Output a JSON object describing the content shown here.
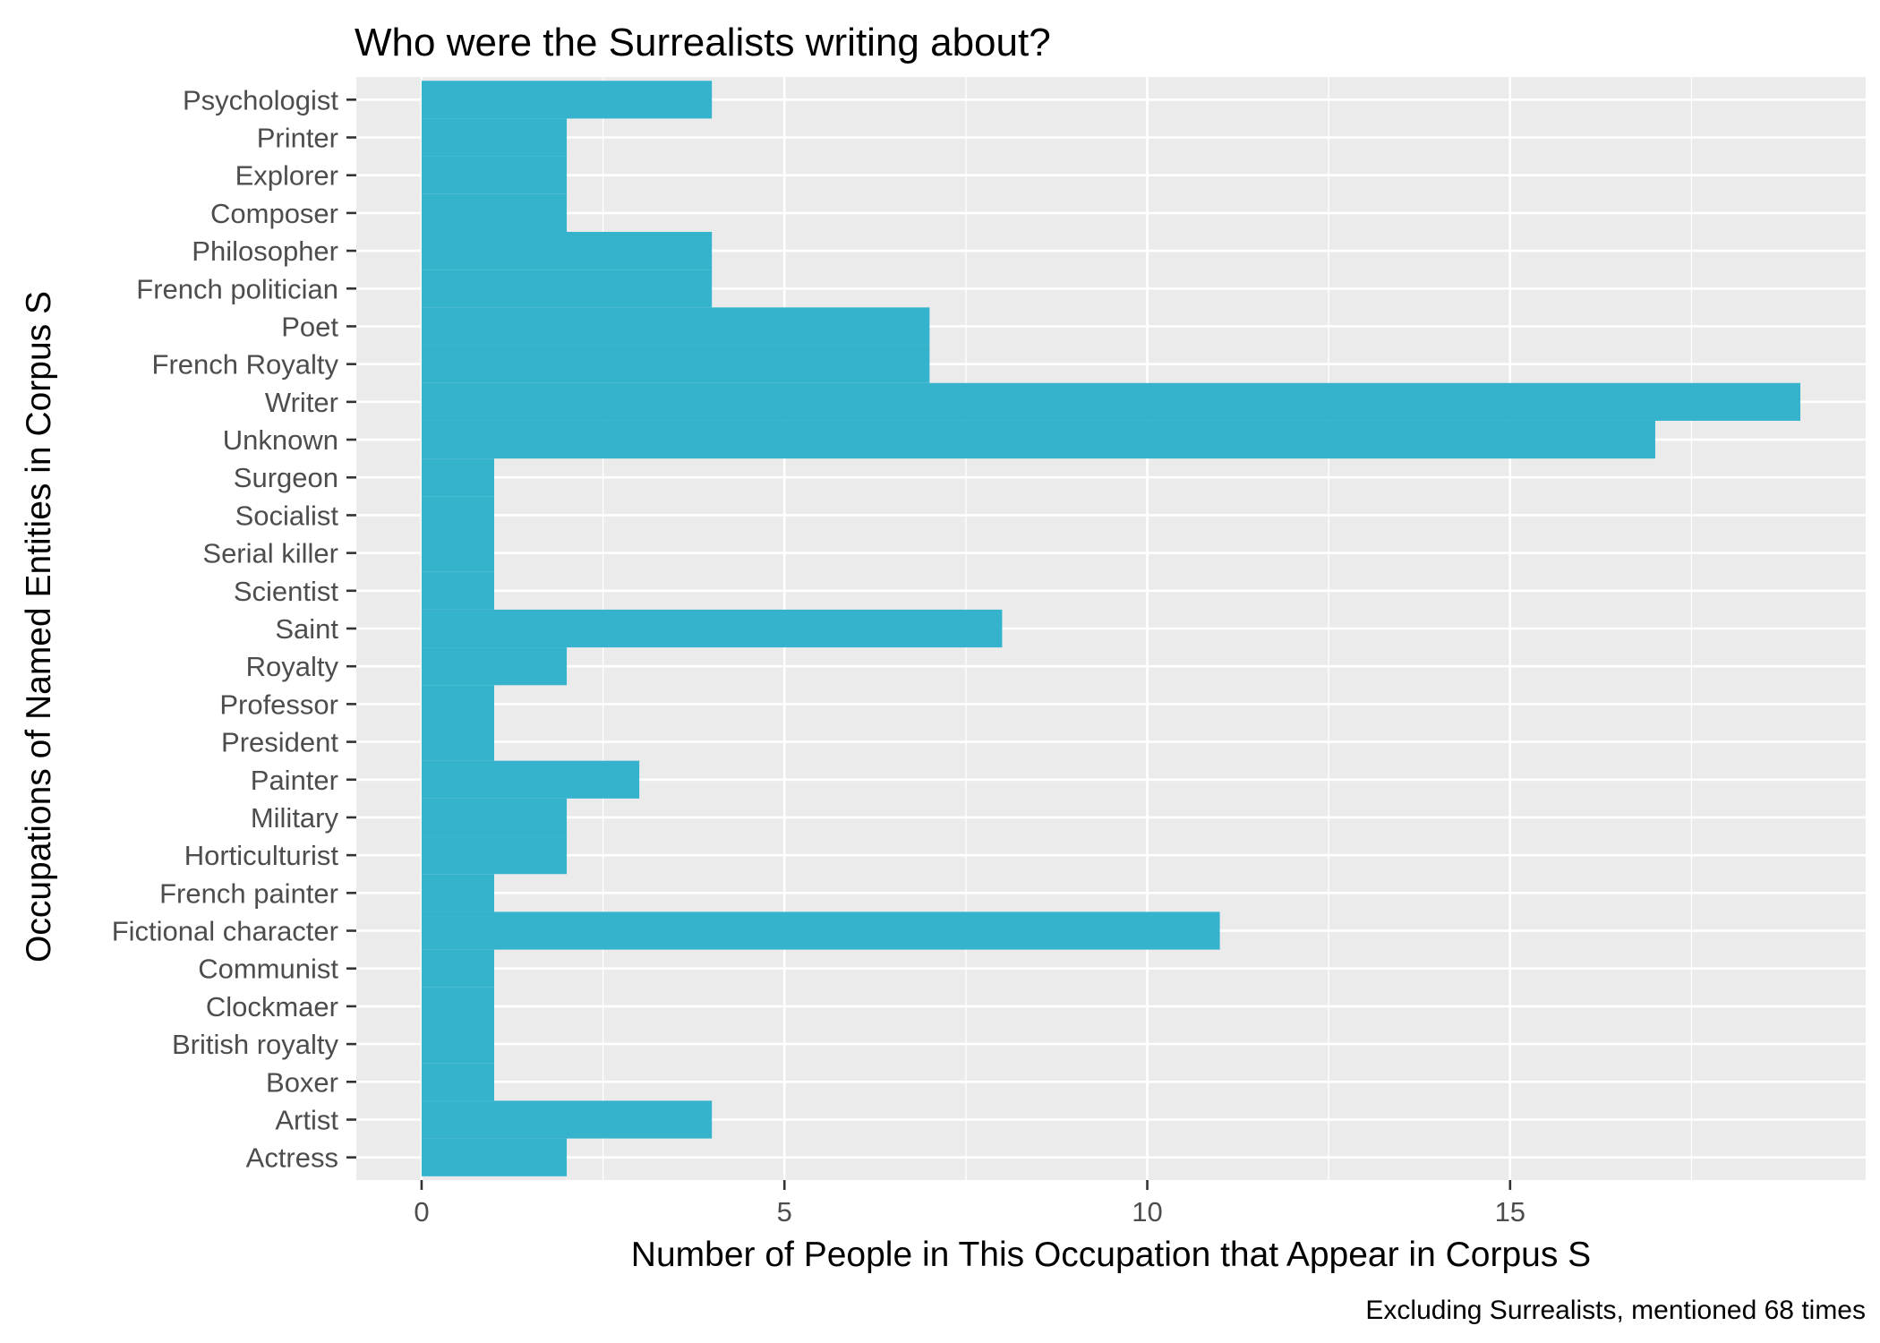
{
  "chart_data": {
    "type": "bar",
    "orientation": "horizontal",
    "title": "Who were the Surrealists writing about?",
    "xlabel": "Number of People in This Occupation that Appear in Corpus S",
    "ylabel": "Occupations of Named Entities in Corpus S",
    "caption": "Excluding Surrealists, mentioned 68 times",
    "categories": [
      "Actress",
      "Artist",
      "Boxer",
      "British royalty",
      "Clockmaer",
      "Communist",
      "Fictional character",
      "French painter",
      "Horticulturist",
      "Military",
      "Painter",
      "President",
      "Professor",
      "Royalty",
      "Saint",
      "Scientist",
      "Serial killer",
      "Socialist",
      "Surgeon",
      "Unknown",
      "Writer",
      "French Royalty",
      "Poet",
      "French politician",
      "Philosopher",
      "Composer",
      "Explorer",
      "Printer",
      "Psychologist"
    ],
    "values": [
      2,
      4,
      1,
      1,
      1,
      1,
      11,
      1,
      2,
      2,
      3,
      1,
      1,
      2,
      8,
      1,
      1,
      1,
      1,
      17,
      19,
      7,
      7,
      4,
      4,
      2,
      2,
      2,
      4
    ],
    "xlim": [
      -0.9,
      19.9
    ],
    "xticks": [
      0,
      5,
      10,
      15
    ],
    "xtick_labels": [
      "0",
      "5",
      "10",
      "15"
    ],
    "bar_color": "#35B3CD",
    "panel_color": "#EBEBEB",
    "grid": true,
    "legend": "none"
  }
}
